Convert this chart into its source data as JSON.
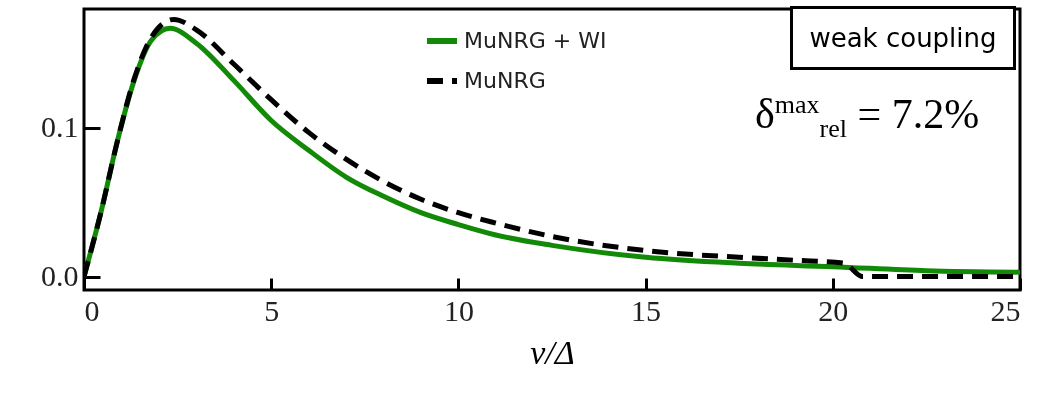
{
  "chart_data": {
    "type": "line",
    "xlabel": "ν/Δ",
    "xlim": [
      0,
      25
    ],
    "xticks": [
      0,
      5,
      10,
      15,
      20,
      25
    ],
    "ylim": [
      -0.009,
      0.18
    ],
    "yticks": [
      {
        "value": 0,
        "label": "0.0"
      },
      0.1
    ],
    "grid": false,
    "legend": "top",
    "annotations": [
      "weak coupling",
      "δ$^{max}$$_{rel}$ = 7.2%"
    ],
    "series": [
      {
        "name": "MuNRG + WI",
        "color": "#138a07",
        "line_style": "solid",
        "x": [
          0,
          0.45,
          0.9,
          1.34,
          1.8,
          2.3,
          3,
          4,
          5,
          6,
          7,
          8,
          9,
          10,
          11,
          12.5,
          15,
          17.5,
          20,
          22.5,
          25
        ],
        "values": [
          0,
          0.043,
          0.092,
          0.132,
          0.159,
          0.167,
          0.157,
          0.132,
          0.105,
          0.085,
          0.067,
          0.054,
          0.043,
          0.035,
          0.028,
          0.021,
          0.013,
          0.009,
          0.0067,
          0.004,
          0.003
        ]
      },
      {
        "name": "MuNRG",
        "color": "#000000",
        "line_style": "dashed",
        "x": [
          0,
          0.45,
          0.9,
          1.34,
          1.8,
          2.4,
          3,
          4,
          5,
          6,
          7,
          8,
          9,
          10,
          11,
          12.5,
          15,
          17.5,
          19,
          20.3,
          20.8,
          22.5,
          25
        ],
        "values": [
          0,
          0.043,
          0.092,
          0.133,
          0.161,
          0.173,
          0.166,
          0.143,
          0.119,
          0.097,
          0.079,
          0.064,
          0.052,
          0.043,
          0.036,
          0.027,
          0.0175,
          0.013,
          0.011,
          0.009,
          0,
          0,
          0
        ]
      }
    ]
  }
}
